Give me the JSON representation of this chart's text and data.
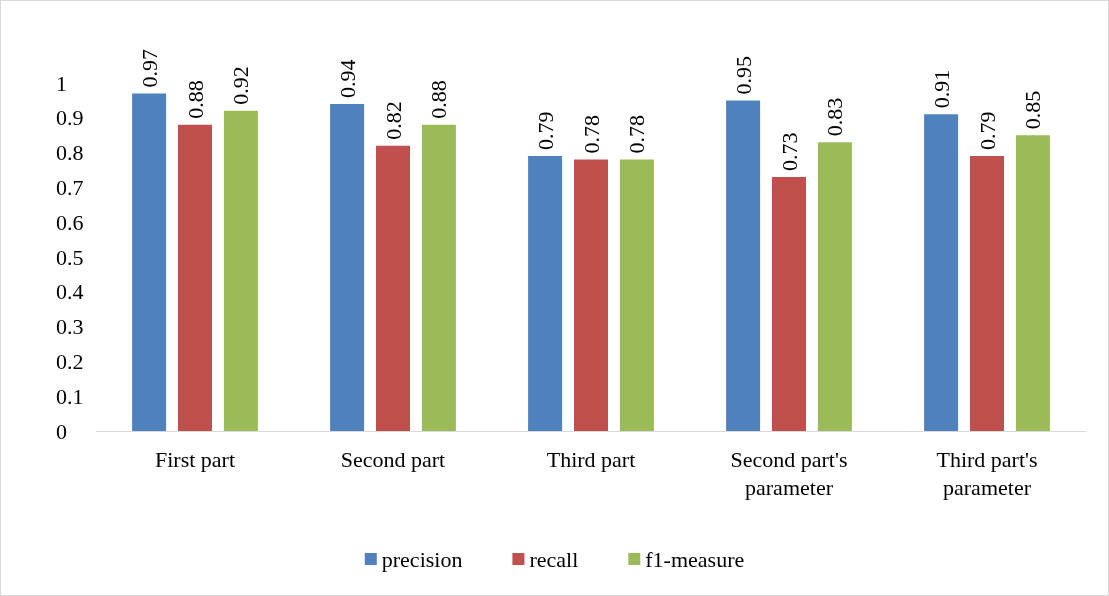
{
  "chart_data": {
    "type": "bar",
    "categories": [
      "First part",
      "Second part",
      "Third part",
      "Second part's\nparameter",
      "Third part's\nparameter"
    ],
    "series": [
      {
        "name": "precision",
        "color": "#4f81bd",
        "values": [
          0.97,
          0.94,
          0.79,
          0.95,
          0.91
        ]
      },
      {
        "name": "recall",
        "color": "#c0504d",
        "values": [
          0.88,
          0.82,
          0.78,
          0.73,
          0.79
        ]
      },
      {
        "name": "f1-measure",
        "color": "#9bbb59",
        "values": [
          0.92,
          0.88,
          0.78,
          0.83,
          0.85
        ]
      }
    ],
    "ylim": [
      0,
      1
    ],
    "yticks": [
      0,
      0.1,
      0.2,
      0.3,
      0.4,
      0.5,
      0.6,
      0.7,
      0.8,
      0.9,
      1
    ],
    "grid": false,
    "legend": "bottom",
    "data_labels": true
  }
}
